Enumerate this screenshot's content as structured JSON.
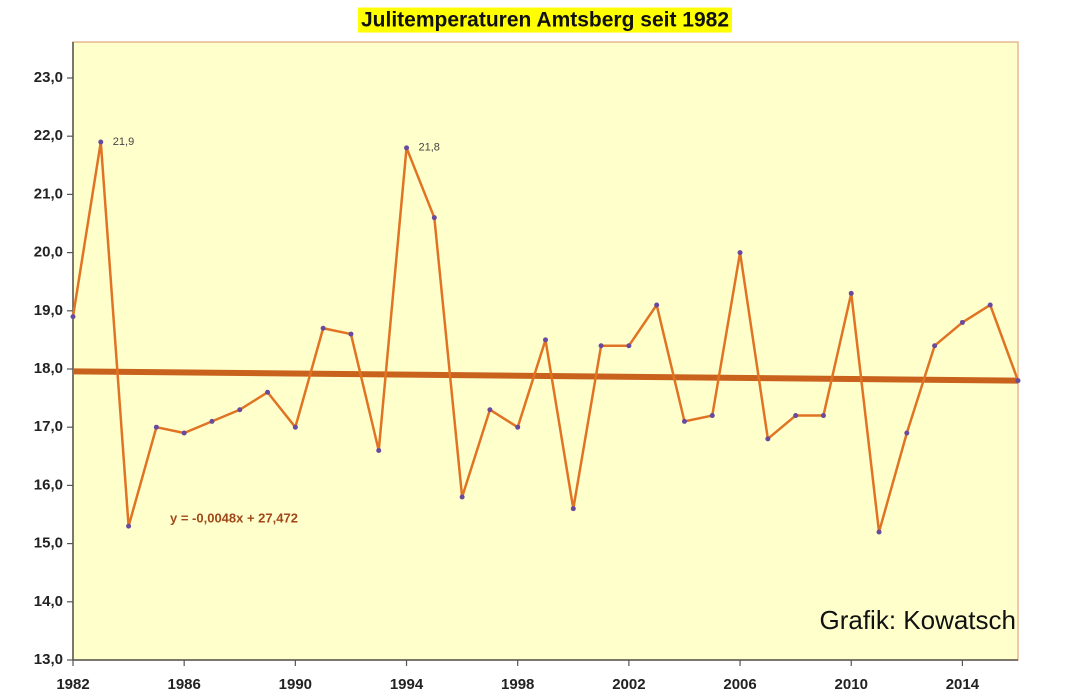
{
  "chart_data": {
    "type": "line",
    "title": "Julitemperaturen Amtsberg seit 1982",
    "x": [
      1982,
      1983,
      1984,
      1985,
      1986,
      1987,
      1988,
      1989,
      1990,
      1991,
      1992,
      1993,
      1994,
      1995,
      1996,
      1997,
      1998,
      1999,
      2000,
      2001,
      2002,
      2003,
      2004,
      2005,
      2006,
      2007,
      2008,
      2009,
      2010,
      2011,
      2012,
      2013,
      2014,
      2015,
      2016
    ],
    "series": [
      {
        "color": "#e07424",
        "marker_color": "#6a4a9c",
        "values": [
          18.9,
          21.9,
          15.3,
          17.0,
          16.9,
          17.1,
          17.3,
          17.6,
          17.0,
          18.7,
          18.6,
          16.6,
          21.8,
          20.6,
          15.8,
          17.3,
          17.0,
          18.5,
          15.6,
          18.4,
          18.4,
          19.1,
          17.1,
          17.2,
          20.0,
          16.8,
          17.2,
          17.2,
          19.3,
          15.2,
          16.9,
          18.4,
          18.8,
          19.1,
          17.8
        ],
        "value_labels": [
          null,
          "21,9",
          null,
          null,
          null,
          null,
          null,
          null,
          null,
          null,
          null,
          null,
          "21,8",
          null,
          null,
          null,
          null,
          null,
          null,
          null,
          null,
          null,
          null,
          null,
          null,
          null,
          null,
          null,
          null,
          null,
          null,
          null,
          null,
          null,
          null
        ]
      }
    ],
    "trendline": {
      "x": [
        1982,
        2016
      ],
      "values": [
        17.96,
        17.8
      ],
      "color": "#c9621c",
      "label": "y = -0,0048x + 27,472"
    },
    "annotation": "Grafik: Kowatsch",
    "xlim": [
      1982,
      2016
    ],
    "xticks": [
      1982,
      1986,
      1990,
      1994,
      1998,
      2002,
      2006,
      2010,
      2014
    ],
    "ylim": [
      13,
      23
    ],
    "yticks": [
      {
        "value": 13,
        "label": "13,0"
      },
      {
        "value": 14,
        "label": "14,0"
      },
      {
        "value": 15,
        "label": "15,0"
      },
      {
        "value": 16,
        "label": "16,0"
      },
      {
        "value": 17,
        "label": "17,0"
      },
      {
        "value": 18,
        "label": "18,0"
      },
      {
        "value": 19,
        "label": "19,0"
      },
      {
        "value": 20,
        "label": "20,0"
      },
      {
        "value": 21,
        "label": "21,0"
      },
      {
        "value": 22,
        "label": "22,0"
      },
      {
        "value": 23,
        "label": "23,0"
      }
    ],
    "grid": false,
    "background": "#ffffcc"
  }
}
